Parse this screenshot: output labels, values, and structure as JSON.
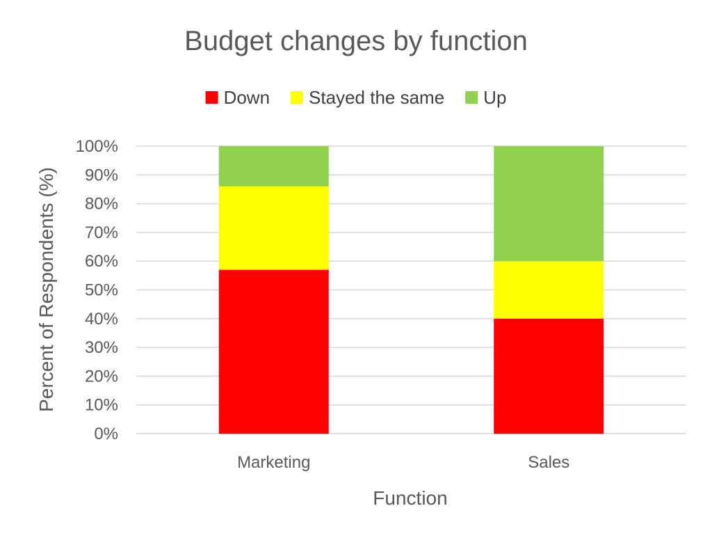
{
  "chart_data": {
    "type": "bar",
    "stacked": true,
    "title": "Budget changes by function",
    "xlabel": "Function",
    "ylabel": "Percent of Respondents (%)",
    "categories": [
      "Marketing",
      "Sales"
    ],
    "series": [
      {
        "name": "Down",
        "color": "#ff0000",
        "values": [
          57,
          40
        ]
      },
      {
        "name": "Stayed the same",
        "color": "#ffff00",
        "values": [
          29,
          20
        ]
      },
      {
        "name": "Up",
        "color": "#92d050",
        "values": [
          14,
          40
        ]
      }
    ],
    "ylim": [
      0,
      100
    ],
    "yticks": [
      "0%",
      "10%",
      "20%",
      "30%",
      "40%",
      "50%",
      "60%",
      "70%",
      "80%",
      "90%",
      "100%"
    ],
    "grid": true,
    "legend_position": "top"
  }
}
